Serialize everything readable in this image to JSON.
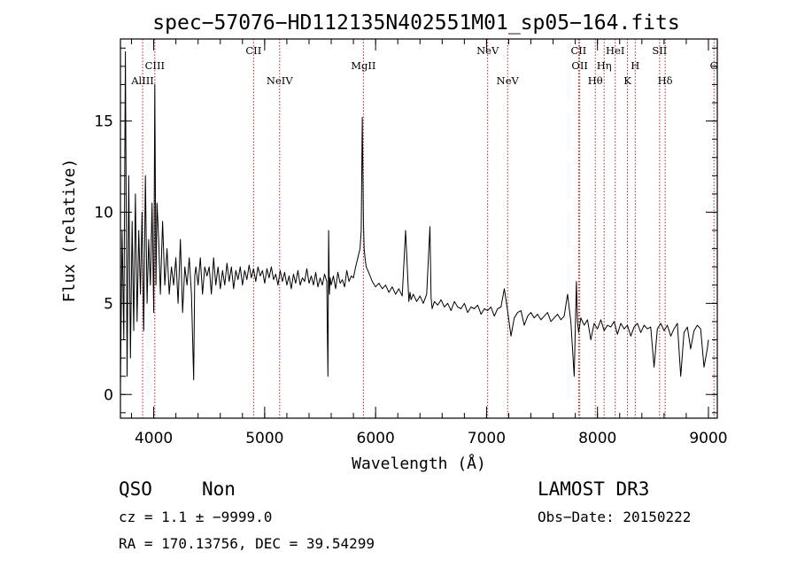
{
  "chart_data": {
    "type": "line",
    "title": "spec−57076−HD112135N402551M01_sp05−164.fits",
    "xlabel": "Wavelength (Å)",
    "ylabel": "Flux (relative)",
    "xlim": [
      3700,
      9080
    ],
    "ylim": [
      -1.3,
      19.5
    ],
    "xticks": [
      4000,
      5000,
      6000,
      7000,
      8000,
      9000
    ],
    "yticks": [
      0,
      5,
      10,
      15
    ],
    "xminor_step": 200,
    "yminor_step": 1,
    "grid": false,
    "series": [
      {
        "name": "spectrum",
        "x": [
          3700,
          3715,
          3730,
          3745,
          3760,
          3775,
          3790,
          3805,
          3820,
          3835,
          3850,
          3865,
          3880,
          3895,
          3910,
          3925,
          3940,
          3955,
          3970,
          3985,
          4000,
          4010,
          4020,
          4030,
          4045,
          4060,
          4080,
          4100,
          4120,
          4140,
          4160,
          4180,
          4200,
          4220,
          4240,
          4260,
          4280,
          4300,
          4320,
          4340,
          4360,
          4370,
          4380,
          4400,
          4420,
          4440,
          4460,
          4480,
          4500,
          4520,
          4540,
          4560,
          4580,
          4600,
          4620,
          4640,
          4660,
          4680,
          4700,
          4720,
          4740,
          4760,
          4780,
          4800,
          4820,
          4840,
          4860,
          4880,
          4900,
          4920,
          4940,
          4960,
          4980,
          5000,
          5020,
          5040,
          5060,
          5080,
          5100,
          5120,
          5140,
          5160,
          5180,
          5200,
          5220,
          5240,
          5260,
          5280,
          5300,
          5320,
          5340,
          5360,
          5380,
          5400,
          5420,
          5440,
          5460,
          5480,
          5500,
          5520,
          5540,
          5560,
          5570,
          5577,
          5584,
          5590,
          5600,
          5620,
          5640,
          5660,
          5680,
          5700,
          5720,
          5740,
          5760,
          5780,
          5800,
          5820,
          5840,
          5860,
          5870,
          5880,
          5890,
          5897,
          5905,
          5915,
          5930,
          5950,
          5970,
          6000,
          6030,
          6060,
          6090,
          6120,
          6150,
          6180,
          6210,
          6240,
          6270,
          6300,
          6310,
          6320,
          6340,
          6370,
          6400,
          6430,
          6460,
          6490,
          6500,
          6510,
          6530,
          6560,
          6590,
          6620,
          6650,
          6680,
          6710,
          6740,
          6770,
          6800,
          6830,
          6860,
          6890,
          6920,
          6950,
          6980,
          7010,
          7040,
          7070,
          7100,
          7130,
          7160,
          7190,
          7220,
          7250,
          7280,
          7310,
          7340,
          7370,
          7400,
          7430,
          7460,
          7490,
          7520,
          7550,
          7580,
          7610,
          7640,
          7670,
          7700,
          7730,
          7760,
          7790,
          7810,
          7820,
          7830,
          7850,
          7880,
          7910,
          7940,
          7970,
          8000,
          8030,
          8060,
          8090,
          8120,
          8150,
          8180,
          8210,
          8240,
          8270,
          8300,
          8330,
          8360,
          8390,
          8420,
          8450,
          8480,
          8510,
          8540,
          8570,
          8600,
          8630,
          8660,
          8690,
          8720,
          8750,
          8780,
          8810,
          8840,
          8870,
          8900,
          8930,
          8960,
          8990,
          9000
        ],
        "y": [
          0.5,
          9.0,
          3.0,
          18.8,
          1.0,
          12.0,
          2.0,
          9.5,
          3.5,
          11.0,
          4.0,
          9.0,
          5.5,
          10.0,
          3.5,
          12.0,
          5.0,
          8.5,
          6.0,
          10.5,
          4.5,
          17.0,
          6.0,
          10.5,
          8.5,
          5.5,
          9.5,
          6.0,
          8.0,
          5.5,
          7.0,
          6.0,
          7.5,
          5.0,
          8.5,
          4.5,
          7.0,
          6.0,
          7.5,
          5.5,
          0.8,
          6.5,
          7.0,
          6.0,
          7.5,
          5.5,
          7.0,
          6.5,
          7.0,
          5.5,
          7.5,
          6.0,
          7.0,
          5.8,
          6.8,
          6.0,
          7.2,
          6.2,
          7.0,
          5.8,
          6.8,
          6.3,
          7.0,
          6.0,
          6.8,
          6.3,
          7.1,
          6.4,
          6.9,
          6.2,
          7.0,
          6.5,
          6.8,
          6.1,
          6.9,
          6.4,
          7.0,
          6.3,
          6.6,
          6.0,
          6.8,
          6.2,
          6.7,
          6.0,
          6.5,
          5.8,
          6.6,
          6.1,
          6.8,
          6.0,
          6.4,
          6.2,
          6.9,
          6.1,
          6.5,
          6.0,
          6.7,
          5.9,
          6.4,
          6.0,
          6.6,
          6.2,
          1.0,
          9.0,
          5.5,
          6.4,
          6.0,
          6.5,
          5.8,
          6.7,
          6.1,
          6.3,
          5.9,
          6.8,
          6.2,
          6.5,
          6.4,
          7.0,
          7.5,
          8.0,
          9.0,
          15.2,
          9.5,
          8.0,
          7.5,
          7.0,
          6.8,
          6.5,
          6.2,
          5.9,
          6.1,
          5.8,
          6.0,
          5.6,
          5.9,
          5.5,
          5.8,
          5.4,
          9.0,
          5.1,
          5.6,
          5.2,
          5.5,
          5.1,
          5.4,
          5.0,
          5.5,
          9.2,
          5.3,
          4.7,
          5.1,
          4.9,
          5.2,
          4.8,
          5.0,
          4.6,
          5.1,
          4.8,
          4.7,
          5.0,
          4.5,
          4.8,
          4.7,
          4.9,
          4.4,
          4.7,
          4.6,
          4.8,
          4.3,
          4.7,
          4.8,
          5.8,
          4.6,
          3.2,
          4.2,
          4.5,
          4.6,
          3.8,
          4.3,
          4.5,
          4.2,
          4.4,
          4.1,
          4.3,
          4.5,
          4.0,
          4.2,
          4.4,
          4.1,
          4.3,
          5.5,
          4.0,
          1.0,
          6.2,
          4.0,
          3.4,
          4.2,
          3.8,
          4.1,
          3.0,
          3.9,
          3.6,
          4.1,
          3.5,
          3.8,
          3.7,
          4.0,
          3.3,
          3.9,
          3.6,
          3.8,
          3.2,
          3.7,
          3.9,
          3.4,
          3.8,
          3.6,
          3.7,
          1.5,
          3.6,
          3.9,
          3.5,
          3.8,
          3.2,
          3.6,
          3.9,
          1.0,
          3.4,
          3.7,
          2.5,
          3.5,
          3.8,
          3.6,
          1.5,
          2.5,
          3.0
        ]
      }
    ],
    "lines": [
      {
        "label": "AlIII",
        "wave": 3900,
        "row": 3
      },
      {
        "label": "CIII",
        "wave": 4010,
        "row": 2
      },
      {
        "label": "CII",
        "wave": 4900,
        "row": 1
      },
      {
        "label": "NeIV",
        "wave": 5135,
        "row": 3
      },
      {
        "label": "MgII",
        "wave": 5890,
        "row": 2
      },
      {
        "label": "NeV",
        "wave": 7010,
        "row": 1
      },
      {
        "label": "NeV",
        "wave": 7190,
        "row": 3
      },
      {
        "label": "CII",
        "wave": 7830,
        "row": 1
      },
      {
        "label": "OII",
        "wave": 7840,
        "row": 2
      },
      {
        "label": "Hθ",
        "wave": 7980,
        "row": 3
      },
      {
        "label": "Hη",
        "wave": 8060,
        "row": 2
      },
      {
        "label": "HeI",
        "wave": 8160,
        "row": 1
      },
      {
        "label": "K",
        "wave": 8270,
        "row": 3
      },
      {
        "label": "H",
        "wave": 8340,
        "row": 2
      },
      {
        "label": "SII",
        "wave": 8560,
        "row": 1
      },
      {
        "label": "Hδ",
        "wave": 8610,
        "row": 3
      },
      {
        "label": "G",
        "wave": 9050,
        "row": 2
      }
    ]
  },
  "info": {
    "object_class": "QSO",
    "subclass": "Non",
    "release": "LAMOST DR3",
    "cz_line": "cz = 1.1 ± −9999.0",
    "obs_date": "Obs−Date: 20150222",
    "coords": "RA = 170.13756, DEC =  39.54299"
  },
  "colors": {
    "axis": "#000000",
    "spectrum": "#000000",
    "line_marker": "#b22222"
  }
}
